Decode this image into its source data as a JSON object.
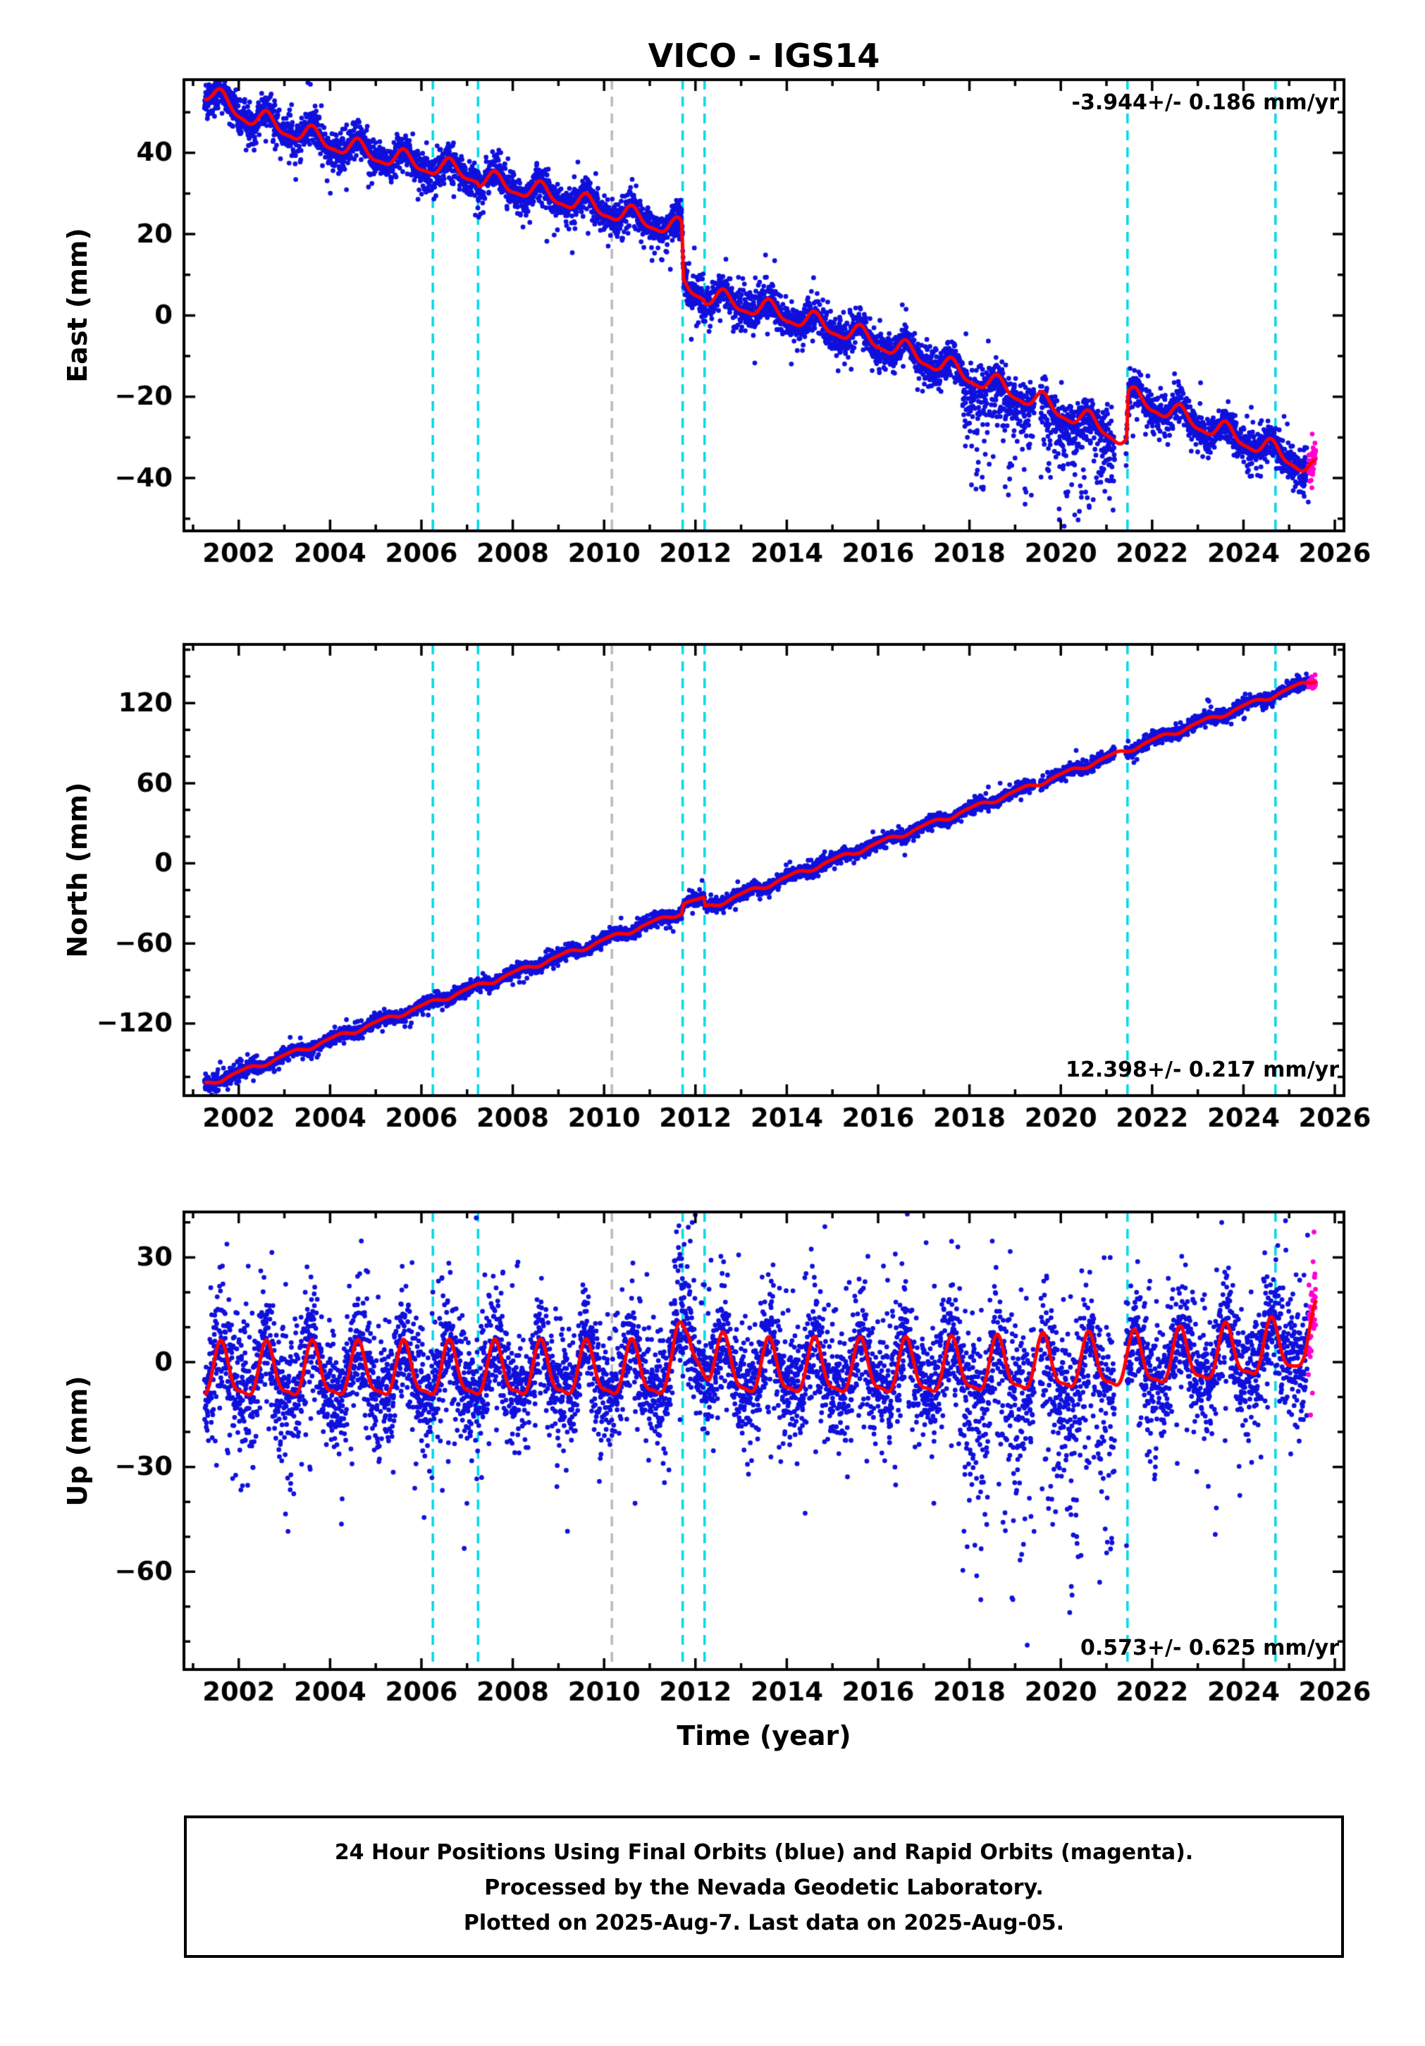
{
  "title": "VICO - IGS14",
  "xlabel": "Time (year)",
  "footer": {
    "line1": "24 Hour Positions Using Final Orbits (blue) and Rapid Orbits (magenta).",
    "line2": "Processed by the Nevada Geodetic Laboratory.",
    "line3": "Plotted on 2025-Aug-7. Last data on 2025-Aug-05."
  },
  "colors": {
    "final_orbit": "#1010dd",
    "rapid_orbit": "#ff00cf",
    "model_line": "#ff0000",
    "event_line": "#00d9e8",
    "reference_line": "#bbbbbb",
    "frame": "#000000"
  },
  "x_range": [
    2000.8,
    2026.2
  ],
  "xticks": [
    2002,
    2004,
    2006,
    2008,
    2010,
    2012,
    2014,
    2016,
    2018,
    2020,
    2022,
    2024,
    2026
  ],
  "x_minor_step": 1,
  "data_start": 2001.25,
  "data_end": 2025.58,
  "rapid_start": 2025.42,
  "event_lines": [
    2006.25,
    2007.24,
    2011.72,
    2012.2,
    2021.46,
    2024.7
  ],
  "reference_lines": [
    2010.17
  ],
  "data_gaps": [
    [
      2019.42,
      2019.55
    ],
    [
      2021.18,
      2021.42
    ]
  ],
  "chart_data": [
    {
      "type": "scatter",
      "panel": "east",
      "ylabel": "East (mm)",
      "rate_label": "-3.944+/- 0.186 mm/yr",
      "rate_label_pos": "top-right",
      "ylim": [
        -53,
        58
      ],
      "yticks": [
        -40,
        -20,
        0,
        20,
        40
      ],
      "y_minor_step": 10,
      "seed": 11,
      "noise_std": 2.0,
      "tail_frac": 0.12,
      "tail_mult": 1.9,
      "seasonal": {
        "annual_amp": 2.2,
        "annual_phase": 0.62,
        "semi_amp": 0.7,
        "semi_phase": 0.1
      },
      "trend": [
        [
          2001.25,
          55
        ],
        [
          2002.2,
          49
        ],
        [
          2003,
          46
        ],
        [
          2004,
          42.5
        ],
        [
          2005,
          39.5
        ],
        [
          2006.3,
          36.5
        ],
        [
          2007.22,
          34.5
        ],
        [
          2007.26,
          33.5
        ],
        [
          2008.5,
          30.5
        ],
        [
          2010,
          26
        ],
        [
          2011.7,
          21
        ],
        [
          2011.74,
          7.5
        ],
        [
          2012.18,
          5.5
        ],
        [
          2012.22,
          4.5
        ],
        [
          2013.5,
          1.5
        ],
        [
          2015,
          -3
        ],
        [
          2016,
          -6.5
        ],
        [
          2017,
          -10.5
        ],
        [
          2018,
          -15
        ],
        [
          2019,
          -19
        ],
        [
          2020,
          -23.5
        ],
        [
          2021,
          -28
        ],
        [
          2021.44,
          -31
        ],
        [
          2021.48,
          -20
        ],
        [
          2022,
          -22
        ],
        [
          2023,
          -26.5
        ],
        [
          2024,
          -30.5
        ],
        [
          2025,
          -35
        ],
        [
          2025.6,
          -38.5
        ]
      ],
      "episodes": [
        {
          "start": 2017.85,
          "end": 2021.44,
          "frac": 0.5,
          "scale": 7,
          "max": 24,
          "sign": -1
        }
      ]
    },
    {
      "type": "scatter",
      "panel": "north",
      "ylabel": "North (mm)",
      "rate_label": "12.398+/- 0.217 mm/yr",
      "rate_label_pos": "bottom-right",
      "ylim": [
        -174,
        164
      ],
      "yticks": [
        -120,
        -60,
        0,
        60,
        120
      ],
      "y_minor_step": 20,
      "seed": 22,
      "noise_std": 2.1,
      "tail_frac": 0.1,
      "tail_mult": 1.8,
      "seasonal": {
        "annual_amp": 1.6,
        "annual_phase": 0.12,
        "semi_amp": 0.5,
        "semi_phase": 0.3
      },
      "trend": [
        [
          2001.25,
          -166
        ],
        [
          2011.7,
          -36.5
        ],
        [
          2011.74,
          -29.5
        ],
        [
          2012.18,
          -27
        ],
        [
          2012.22,
          -33.5
        ],
        [
          2025.6,
          138
        ]
      ],
      "episodes": [
        {
          "start": 2001.25,
          "end": 2002.3,
          "frac": 0.35,
          "scale": 3,
          "max": 10,
          "sign": 0
        }
      ]
    },
    {
      "type": "scatter",
      "panel": "up",
      "ylabel": "Up (mm)",
      "rate_label": "0.573+/- 0.625 mm/yr",
      "rate_label_pos": "bottom-right",
      "ylim": [
        -88,
        43
      ],
      "yticks": [
        -60,
        -30,
        0,
        30
      ],
      "y_minor_step": 10,
      "seed": 33,
      "noise_std": 6.5,
      "tail_frac": 0.25,
      "tail_mult": 2.0,
      "seasonal": {
        "annual_amp": 7.5,
        "annual_phase": 0.62,
        "semi_amp": 2.3,
        "semi_phase": 0.1
      },
      "trend": [
        [
          2001.25,
          -3.5
        ],
        [
          2011.5,
          -3
        ],
        [
          2011.85,
          9
        ],
        [
          2012.3,
          0
        ],
        [
          2013,
          -2.5
        ],
        [
          2017,
          -2.5
        ],
        [
          2021.5,
          -0.5
        ],
        [
          2023.5,
          1.5
        ],
        [
          2025.1,
          4
        ],
        [
          2025.6,
          8
        ]
      ],
      "episodes": [
        {
          "start": 2017.85,
          "end": 2021.44,
          "frac": 0.45,
          "scale": 16,
          "max": 58,
          "sign": -1
        },
        {
          "start": 2011.55,
          "end": 2011.95,
          "frac": 0.5,
          "scale": 11,
          "max": 36,
          "sign": 1
        },
        {
          "start": 2024.78,
          "end": 2025.12,
          "frac": 0.35,
          "scale": 11,
          "max": 34,
          "sign": 1
        },
        {
          "start": 2001.25,
          "end": 2002.35,
          "frac": 0.3,
          "scale": 8,
          "max": 22,
          "sign": 0
        }
      ]
    }
  ]
}
